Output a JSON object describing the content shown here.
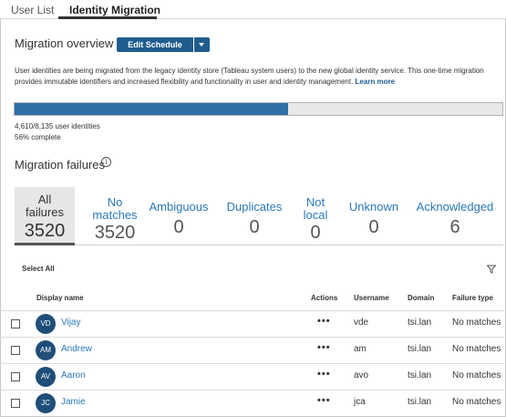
{
  "tabs": [
    {
      "label": "User List"
    },
    {
      "label": "Identity Migration"
    }
  ],
  "overview": {
    "title": "Migration overview",
    "edit_button": "Edit Schedule",
    "description": "User identities are being migrated from the legacy identity store (Tableau system users) to the new global identity service. This one-time migration provides immutable identifiers and increased flexibility and functionality in user and identity management.",
    "learn_more": "Learn more",
    "progress_fraction": 0.56,
    "count_text": "4,610/8,135 user identities",
    "percent_text": "56% complete"
  },
  "failures": {
    "title": "Migration failures",
    "cards": [
      {
        "label_lines": [
          "All",
          "failures"
        ],
        "value": "3520",
        "active": true
      },
      {
        "label_lines": [
          "No",
          "matches"
        ],
        "value": "3520",
        "active": false
      },
      {
        "label_lines": [
          "Ambiguous"
        ],
        "value": "0",
        "active": false
      },
      {
        "label_lines": [
          "Duplicates"
        ],
        "value": "0",
        "active": false
      },
      {
        "label_lines": [
          "Not",
          "local"
        ],
        "value": "0",
        "active": false
      },
      {
        "label_lines": [
          "Unknown"
        ],
        "value": "0",
        "active": false
      },
      {
        "label_lines": [
          "Acknowledged"
        ],
        "value": "6",
        "active": false
      }
    ]
  },
  "table": {
    "select_all": "Select All",
    "columns": {
      "display_name": "Display name",
      "actions": "Actions",
      "username": "Username",
      "domain": "Domain",
      "failure_type": "Failure type"
    },
    "rows": [
      {
        "initials": "VD",
        "display_name": "Vijay",
        "username": "vde",
        "domain": "tsi.lan",
        "failure_type": "No matches"
      },
      {
        "initials": "AM",
        "display_name": "Andrew",
        "username": "am",
        "domain": "tsi.lan",
        "failure_type": "No matches"
      },
      {
        "initials": "AV",
        "display_name": "Aaron",
        "username": "avo",
        "domain": "tsi.lan",
        "failure_type": "No matches"
      },
      {
        "initials": "JC",
        "display_name": "Jamie",
        "username": "jca",
        "domain": "tsi.lan",
        "failure_type": "No matches"
      }
    ],
    "actions_glyph": "•••"
  },
  "icons": {
    "info": "info-icon",
    "filter": "filter-icon",
    "caret": "chevron-down-icon"
  },
  "colors": {
    "accent": "#1f5d8f",
    "link": "#2a78b8",
    "progress": "#2e6fa6",
    "avatar": "#1f4e79"
  }
}
